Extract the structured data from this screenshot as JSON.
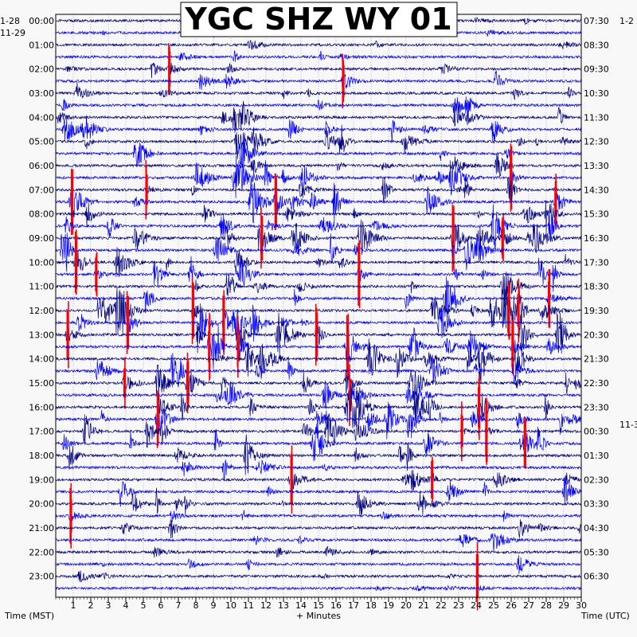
{
  "chart_data": {
    "type": "helicorder",
    "title": "YGC SHZ WY 01",
    "xlabel": "+ Minutes",
    "left_axis_label": "Time (MST)",
    "right_axis_label": "Time (UTC)",
    "x_ticks": [
      "1",
      "2",
      "3",
      "4",
      "5",
      "6",
      "7",
      "8",
      "9",
      "10",
      "11",
      "12",
      "13",
      "14",
      "15",
      "16",
      "17",
      "18",
      "19",
      "20",
      "21",
      "22",
      "23",
      "24",
      "25",
      "26",
      "27",
      "28",
      "29",
      "30"
    ],
    "xlim": [
      0,
      30
    ],
    "left_date_top": "1-28",
    "left_date_start": "11-29",
    "right_date_top": "1-2",
    "right_date_change": "11-3",
    "hour_rows": 48,
    "left_time_labels": [
      "00:00",
      "01:00",
      "02:00",
      "03:00",
      "04:00",
      "05:00",
      "06:00",
      "07:00",
      "08:00",
      "09:00",
      "10:00",
      "11:00",
      "12:00",
      "13:00",
      "14:00",
      "15:00",
      "16:00",
      "17:00",
      "18:00",
      "19:00",
      "20:00",
      "21:00",
      "22:00",
      "23:00"
    ],
    "right_time_labels": [
      "07:30",
      "08:30",
      "09:30",
      "10:30",
      "11:30",
      "12:30",
      "13:30",
      "14:30",
      "15:30",
      "16:30",
      "17:30",
      "18:30",
      "19:30",
      "20:30",
      "21:30",
      "22:30",
      "23:30",
      "00:30",
      "01:30",
      "02:30",
      "03:30",
      "04:30",
      "05:30",
      "06:30"
    ],
    "trace_colors": [
      "#000080",
      "#0000ff"
    ],
    "clip_color": "#ff0000",
    "grid": true
  }
}
